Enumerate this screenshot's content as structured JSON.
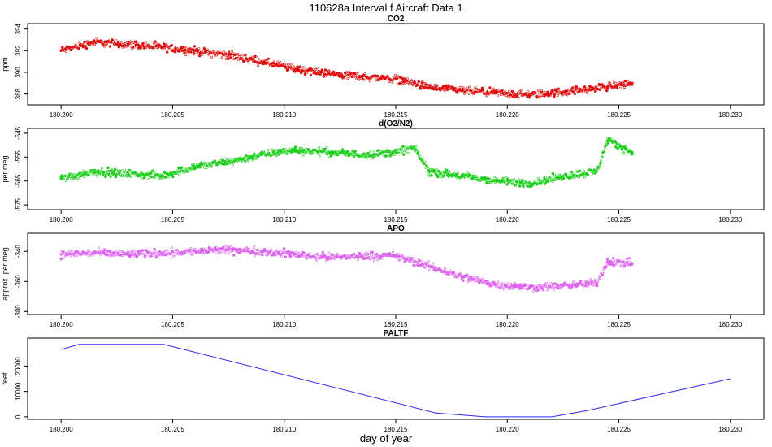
{
  "title": "110628a   Interval f Aircraft Data 1",
  "xlabel": "day of year",
  "chart_data": [
    {
      "type": "scatter",
      "title": "CO2",
      "ylabel": "ppm",
      "xlim": [
        180.1985,
        180.2315
      ],
      "ylim": [
        387.0,
        394.5
      ],
      "xticks": [
        "180.200",
        "180.205",
        "180.210",
        "180.215",
        "180.220",
        "180.225",
        "180.230"
      ],
      "yticks": [
        "388",
        "390",
        "392",
        "394"
      ],
      "color": "#e01010",
      "series": [
        {
          "x": [
            180.2,
            180.2015,
            180.203,
            180.2045,
            180.206,
            180.2075,
            180.209,
            180.2105,
            180.212,
            180.2135,
            180.215,
            180.2165,
            180.218,
            180.2195,
            180.221,
            180.2225,
            180.2235,
            180.2245,
            180.2256
          ],
          "values": [
            392.0,
            392.8,
            392.6,
            392.3,
            392.0,
            391.6,
            391.0,
            390.3,
            389.9,
            389.6,
            389.4,
            388.6,
            388.3,
            388.1,
            387.9,
            388.2,
            388.4,
            388.7,
            389.0
          ]
        }
      ]
    },
    {
      "type": "scatter",
      "title": "d(O2/N2)",
      "ylabel": "per meg",
      "xlim": [
        180.1985,
        180.2315
      ],
      "ylim": [
        -577,
        -543
      ],
      "xticks": [
        "180.200",
        "180.205",
        "180.210",
        "180.215",
        "180.220",
        "180.225",
        "180.230"
      ],
      "yticks": [
        "-545",
        "-555",
        "-565",
        "-575"
      ],
      "color": "#22d022",
      "series": [
        {
          "x": [
            180.2,
            180.2015,
            180.203,
            180.2045,
            180.206,
            180.2075,
            180.209,
            180.2105,
            180.212,
            180.2135,
            180.215,
            180.2158,
            180.2165,
            180.218,
            180.2195,
            180.221,
            180.2225,
            180.224,
            180.2245,
            180.2256
          ],
          "values": [
            -564,
            -561,
            -562,
            -563,
            -559,
            -557,
            -554,
            -552,
            -553,
            -554,
            -553,
            -551,
            -561,
            -563,
            -565,
            -566,
            -563,
            -561,
            -548,
            -553
          ]
        }
      ]
    },
    {
      "type": "scatter",
      "title": "APO",
      "ylabel": "approx. per meg",
      "xlim": [
        180.1985,
        180.2315
      ],
      "ylim": [
        -382,
        -328
      ],
      "xticks": [
        "180.200",
        "180.205",
        "180.210",
        "180.215",
        "180.220",
        "180.225",
        "180.230"
      ],
      "yticks": [
        "-340",
        "-360",
        "-380"
      ],
      "color": "#dd66ee",
      "series": [
        {
          "x": [
            180.2,
            180.2015,
            180.203,
            180.2045,
            180.206,
            180.2075,
            180.209,
            180.2105,
            180.212,
            180.2135,
            180.215,
            180.2165,
            180.218,
            180.2195,
            180.221,
            180.2225,
            180.224,
            180.2245,
            180.2256
          ],
          "values": [
            -342,
            -341,
            -342,
            -341,
            -340,
            -339,
            -340,
            -342,
            -344,
            -343,
            -343,
            -350,
            -357,
            -362,
            -364,
            -363,
            -361,
            -347,
            -348
          ]
        }
      ]
    },
    {
      "type": "line",
      "title": "PALTF",
      "ylabel": "feet",
      "xlim": [
        180.1985,
        180.2315
      ],
      "ylim": [
        -1000,
        31000
      ],
      "xticks": [
        "180.200",
        "180.205",
        "180.210",
        "180.215",
        "180.220",
        "180.225",
        "180.230"
      ],
      "yticks": [
        "0",
        "10000",
        "20000"
      ],
      "color": "#2a2aee",
      "series": [
        {
          "x": [
            180.2,
            180.2008,
            180.2046,
            180.2168,
            180.219,
            180.222,
            180.2236,
            180.23
          ],
          "values": [
            26500,
            28500,
            28500,
            1500,
            0,
            0,
            2500,
            15000
          ]
        }
      ]
    }
  ]
}
